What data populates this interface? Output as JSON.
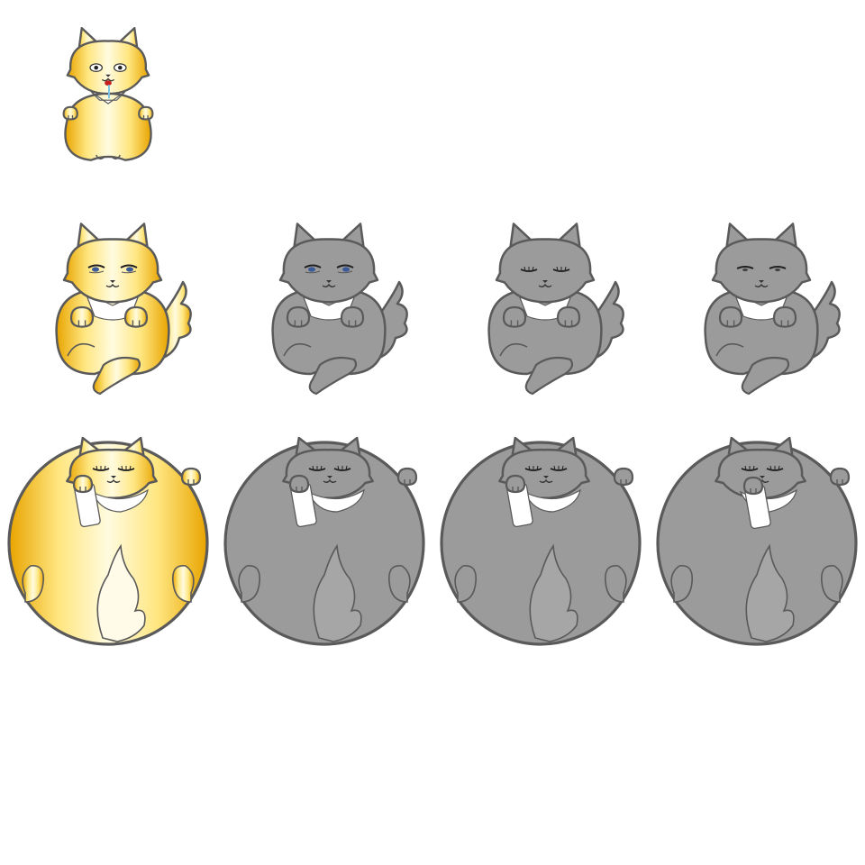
{
  "palette": {
    "outline": "#5a5a5a",
    "gold_light": "#fffbe0",
    "gold_mid": "#ffe680",
    "gold_dark": "#e8a400",
    "gray_fill": "#9b9b9b",
    "gray_light": "#a6a6a6",
    "white_patch": "#ffffff",
    "eye_blue": "#3a5a9a",
    "tongue_red": "#c81e1e",
    "drool_blue": "#7ac4e6"
  },
  "sprites": [
    {
      "pose": "small",
      "coat": "gold",
      "eyes": "round"
    },
    {
      "pose": "sitting",
      "coat": "gold",
      "eyes": "blue"
    },
    {
      "pose": "sitting",
      "coat": "gray",
      "eyes": "blue"
    },
    {
      "pose": "sitting",
      "coat": "gray",
      "eyes": "closed"
    },
    {
      "pose": "sitting",
      "coat": "gray",
      "eyes": "narrow"
    },
    {
      "pose": "ball",
      "coat": "gold",
      "eyes": "closed",
      "paw": "left"
    },
    {
      "pose": "ball",
      "coat": "gray",
      "eyes": "closed",
      "paw": "left"
    },
    {
      "pose": "ball",
      "coat": "gray",
      "eyes": "closed",
      "paw": "left"
    },
    {
      "pose": "ball",
      "coat": "gray",
      "eyes": "closed",
      "paw": "center"
    }
  ]
}
